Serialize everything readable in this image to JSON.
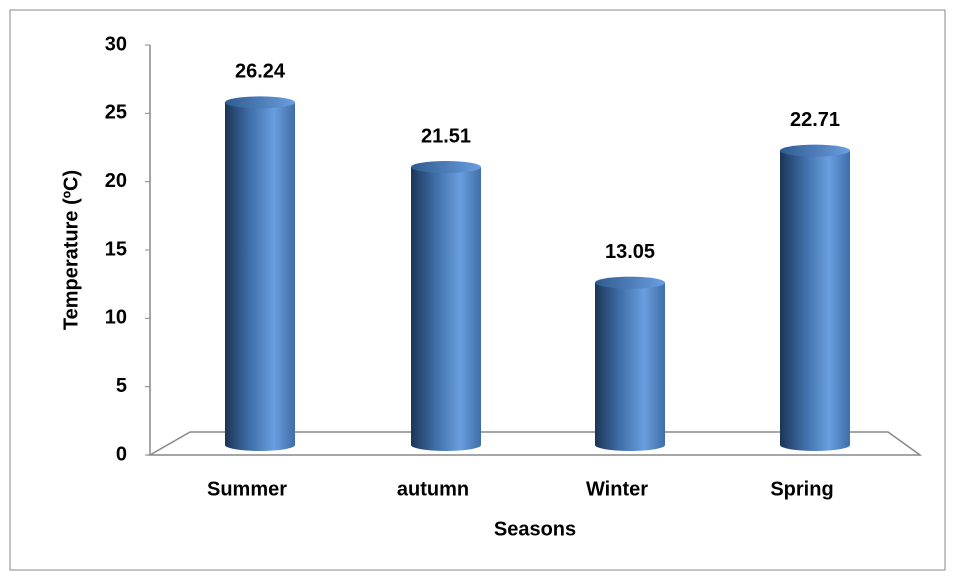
{
  "chart_data": {
    "type": "bar",
    "x_label": "Seasons",
    "y_label": "Temperature (ºC)",
    "categories": [
      "Summer",
      "autumn",
      "Winter",
      "Spring"
    ],
    "values": [
      26.24,
      21.51,
      13.05,
      22.71
    ],
    "color": "#4f81bd",
    "ylim": [
      0,
      30
    ],
    "yticks": [
      0,
      5,
      10,
      15,
      20,
      25,
      30
    ],
    "grid": false
  }
}
